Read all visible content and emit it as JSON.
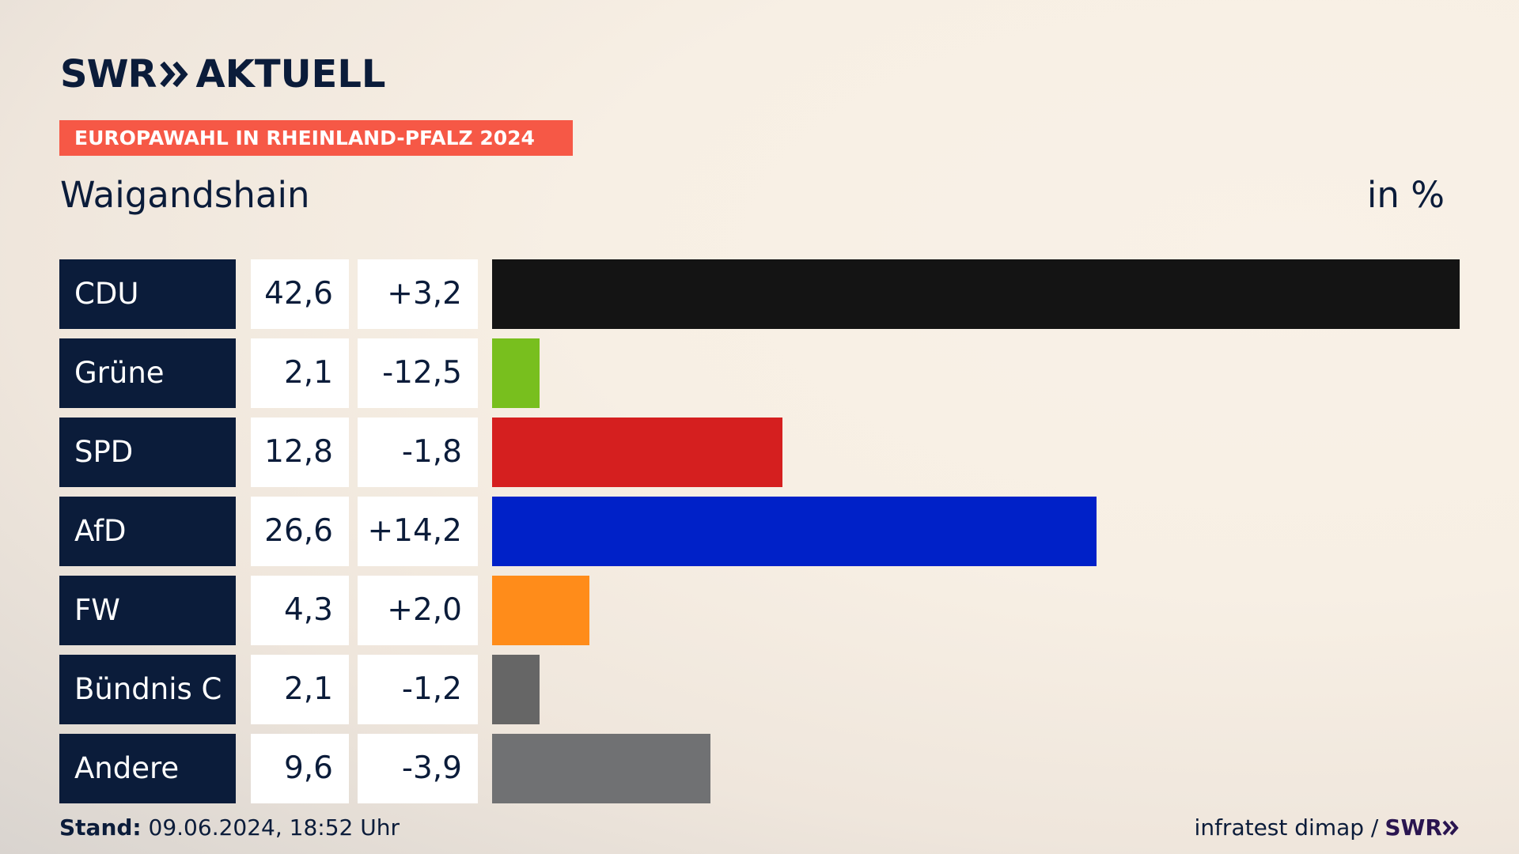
{
  "header": {
    "logo_swr": "SWR",
    "logo_aktuell": "AKTUELL",
    "banner": "EUROPAWAHL IN RHEINLAND-PFALZ 2024",
    "region": "Waigandshain",
    "unit": "in %"
  },
  "footer": {
    "stand_label": "Stand:",
    "stand_value": "09.06.2024, 18:52 Uhr",
    "source": "infratest dimap /",
    "source_logo": "SWR"
  },
  "colors": {
    "navy": "#0b1c3a",
    "banner": "#f65846"
  },
  "chart_data": {
    "type": "bar",
    "orientation": "horizontal",
    "categories": [
      "CDU",
      "Grüne",
      "SPD",
      "AfD",
      "FW",
      "Bündnis C",
      "Andere"
    ],
    "values": [
      42.6,
      2.1,
      12.8,
      26.6,
      4.3,
      2.1,
      9.6
    ],
    "value_labels": [
      "42,6",
      "2,1",
      "12,8",
      "26,6",
      "4,3",
      "2,1",
      "9,6"
    ],
    "changes": [
      3.2,
      -12.5,
      -1.8,
      14.2,
      2.0,
      -1.2,
      -3.9
    ],
    "change_labels": [
      "+3,2",
      "-12,5",
      "-1,8",
      "+14,2",
      "+2,0",
      "-1,2",
      "-3,9"
    ],
    "colors": [
      "#141414",
      "#78bf1e",
      "#d51f1f",
      "#0021c8",
      "#ff8c1a",
      "#666666",
      "#707173"
    ],
    "xlim": [
      0,
      42.6
    ],
    "grid": false
  }
}
